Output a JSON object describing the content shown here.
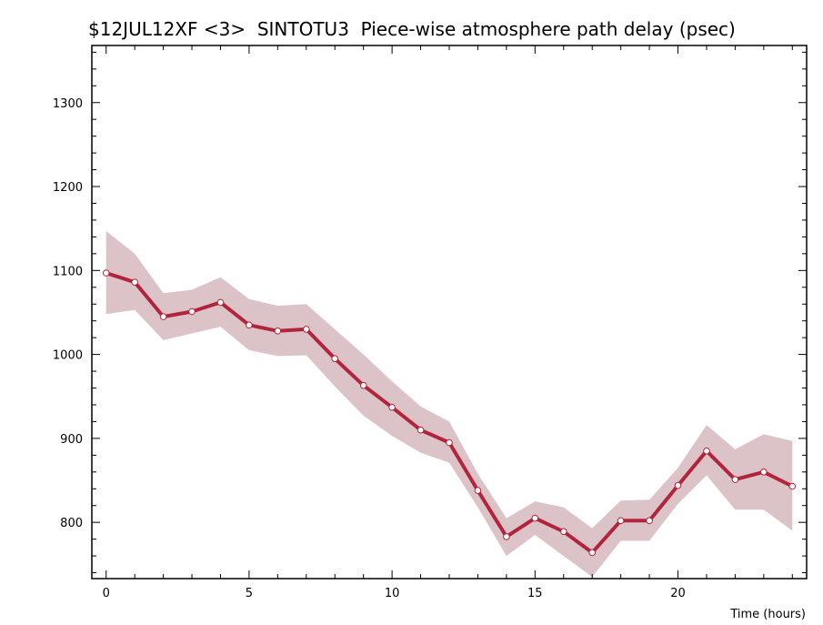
{
  "chart_data": {
    "type": "line",
    "title": "$12JUL12XF <3>  SINTOTU3  Piece-wise atmosphere path delay (psec)",
    "xlabel": "Time (hours)",
    "ylabel": "",
    "xlim": [
      -0.5,
      24.5
    ],
    "ylim": [
      733,
      1368
    ],
    "x_ticks": [
      0,
      5,
      10,
      15,
      20
    ],
    "y_ticks": [
      800,
      900,
      1000,
      1100,
      1200,
      1300
    ],
    "grid": false,
    "colors": {
      "line": "#b2243c",
      "band": "#dcc3c7",
      "marker_fill": "#ffffff"
    },
    "series": [
      {
        "x": [
          0,
          1,
          2,
          3,
          4,
          5,
          6,
          7,
          8,
          9,
          10,
          11,
          12,
          13,
          14,
          15,
          16,
          17,
          18,
          19,
          20,
          21,
          22,
          23,
          24
        ],
        "y": [
          1097,
          1086,
          1045,
          1051,
          1062,
          1035,
          1028,
          1030,
          995,
          963,
          937,
          910,
          895,
          838,
          783,
          805,
          789,
          764,
          802,
          802,
          844,
          885,
          851,
          860,
          843
        ],
        "upper": [
          1147,
          1120,
          1073,
          1077,
          1092,
          1066,
          1058,
          1060,
          1030,
          1000,
          968,
          938,
          920,
          858,
          805,
          825,
          818,
          793,
          826,
          827,
          865,
          916,
          887,
          905,
          897
        ],
        "lower": [
          1048,
          1053,
          1017,
          1025,
          1033,
          1005,
          998,
          999,
          962,
          927,
          903,
          883,
          871,
          818,
          760,
          785,
          760,
          735,
          778,
          778,
          822,
          856,
          815,
          815,
          790
        ]
      }
    ]
  }
}
